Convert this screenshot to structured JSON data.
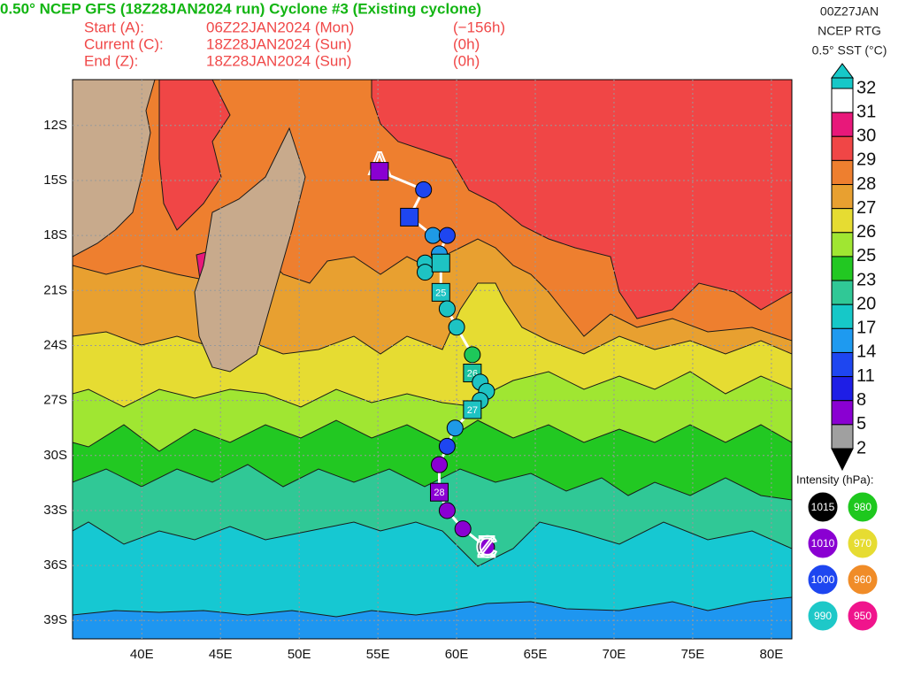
{
  "header": {
    "title": "0.50° NCEP GFS (18Z28JAN2024 run) Cyclone #3 (Existing cyclone)",
    "lines": [
      [
        "Start (A):",
        "06Z22JAN2024 (Mon)",
        "(−156h)"
      ],
      [
        "Current (C):",
        "18Z28JAN2024 (Sun)",
        "(0h)"
      ],
      [
        "End (Z):",
        "18Z28JAN2024 (Sun)",
        "(0h)"
      ]
    ],
    "right": [
      "00Z27JAN",
      "NCEP RTG",
      "0.5° SST (°C)"
    ]
  },
  "map": {
    "lon_range": [
      35.6,
      81.3
    ],
    "lat_range": [
      -9.5,
      -40.0
    ],
    "lon_ticks": [
      {
        "value": 40,
        "label": "40E"
      },
      {
        "value": 45,
        "label": "45E"
      },
      {
        "value": 50,
        "label": "50E"
      },
      {
        "value": 55,
        "label": "55E"
      },
      {
        "value": 60,
        "label": "60E"
      },
      {
        "value": 65,
        "label": "65E"
      },
      {
        "value": 70,
        "label": "70E"
      },
      {
        "value": 75,
        "label": "75E"
      },
      {
        "value": 80,
        "label": "80E"
      }
    ],
    "lat_ticks": [
      {
        "value": -12,
        "label": "12S"
      },
      {
        "value": -15,
        "label": "15S"
      },
      {
        "value": -18,
        "label": "18S"
      },
      {
        "value": -21,
        "label": "21S"
      },
      {
        "value": -24,
        "label": "24S"
      },
      {
        "value": -27,
        "label": "27S"
      },
      {
        "value": -30,
        "label": "30S"
      },
      {
        "value": -33,
        "label": "33S"
      },
      {
        "value": -36,
        "label": "36S"
      },
      {
        "value": -39,
        "label": "39S"
      }
    ],
    "grid": true,
    "start_marker": "A",
    "current_marker": "C",
    "end_marker": "Z",
    "track": [
      {
        "lon": 55.1,
        "lat": -14.5,
        "shape": "square",
        "color": "#8a00d2"
      },
      {
        "lon": 57.9,
        "lat": -15.5,
        "shape": "circle",
        "color": "#1e46f0"
      },
      {
        "lon": 57.0,
        "lat": -17.0,
        "shape": "square",
        "color": "#1e46f0"
      },
      {
        "lon": 58.5,
        "lat": -18.0,
        "shape": "circle",
        "color": "#1e9ae6"
      },
      {
        "lon": 59.4,
        "lat": -18.0,
        "shape": "circle",
        "color": "#1e46f0"
      },
      {
        "lon": 58.9,
        "lat": -19.0,
        "shape": "circle",
        "color": "#1e9ae6"
      },
      {
        "lon": 58.0,
        "lat": -19.5,
        "shape": "circle",
        "color": "#1ec3c3"
      },
      {
        "lon": 58.0,
        "lat": -20.0,
        "shape": "circle",
        "color": "#1ec3c3"
      },
      {
        "lon": 59.0,
        "lat": -19.5,
        "shape": "square",
        "color": "#1ec3c3"
      },
      {
        "lon": 59.0,
        "lat": -21.1,
        "shape": "square",
        "color": "#1ec3c3",
        "label": "25"
      },
      {
        "lon": 59.4,
        "lat": -22.0,
        "shape": "circle",
        "color": "#1ec3c3"
      },
      {
        "lon": 60.0,
        "lat": -23.0,
        "shape": "circle",
        "color": "#1ec3c3"
      },
      {
        "lon": 61.0,
        "lat": -24.5,
        "shape": "circle",
        "color": "#1ec85a"
      },
      {
        "lon": 61.0,
        "lat": -25.5,
        "shape": "square",
        "color": "#1ec3a0",
        "label": "26"
      },
      {
        "lon": 61.5,
        "lat": -26.0,
        "shape": "circle",
        "color": "#1ec3c3"
      },
      {
        "lon": 61.9,
        "lat": -26.5,
        "shape": "circle",
        "color": "#1ec3c3"
      },
      {
        "lon": 61.5,
        "lat": -27.0,
        "shape": "circle",
        "color": "#1ec3c3"
      },
      {
        "lon": 61.0,
        "lat": -27.5,
        "shape": "square",
        "color": "#1ec3c3",
        "label": "27"
      },
      {
        "lon": 59.9,
        "lat": -28.5,
        "shape": "circle",
        "color": "#1e9ae6"
      },
      {
        "lon": 59.4,
        "lat": -29.5,
        "shape": "circle",
        "color": "#1e46f0"
      },
      {
        "lon": 58.9,
        "lat": -30.5,
        "shape": "circle",
        "color": "#8a00d2"
      },
      {
        "lon": 58.9,
        "lat": -32.0,
        "shape": "square",
        "color": "#8a00d2",
        "label": "28"
      },
      {
        "lon": 59.4,
        "lat": -33.0,
        "shape": "circle",
        "color": "#8a00d2"
      },
      {
        "lon": 60.4,
        "lat": -34.0,
        "shape": "circle",
        "color": "#8a00d2"
      },
      {
        "lon": 61.9,
        "lat": -35.0,
        "shape": "circle",
        "color": "#8a00d2"
      }
    ]
  },
  "colorbar": {
    "labels": [
      32,
      31,
      30,
      29,
      28,
      27,
      26,
      25,
      23,
      20,
      17,
      14,
      11,
      8,
      5,
      2
    ],
    "colors": [
      "#ffffff",
      "#e8187a",
      "#f04646",
      "#ee7f2f",
      "#e8a030",
      "#e6dc32",
      "#a0e632",
      "#22c822",
      "#30c896",
      "#16c8c8",
      "#1e9af0",
      "#1e46f0",
      "#1e1ee6",
      "#8a00d2",
      "#a0a0a0"
    ],
    "top_color": "#16c8c8",
    "bottom_color": "#000000"
  },
  "intensity": {
    "title": "Intensity (hPa):",
    "items": [
      {
        "value": 1015,
        "color": "#000000"
      },
      {
        "value": 980,
        "color": "#1ec81e"
      },
      {
        "value": 1010,
        "color": "#8a00d2"
      },
      {
        "value": 970,
        "color": "#e6dc32"
      },
      {
        "value": 1000,
        "color": "#1e46f0"
      },
      {
        "value": 960,
        "color": "#f08c28"
      },
      {
        "value": 990,
        "color": "#1ec8c8"
      },
      {
        "value": 950,
        "color": "#f0148c"
      }
    ]
  }
}
